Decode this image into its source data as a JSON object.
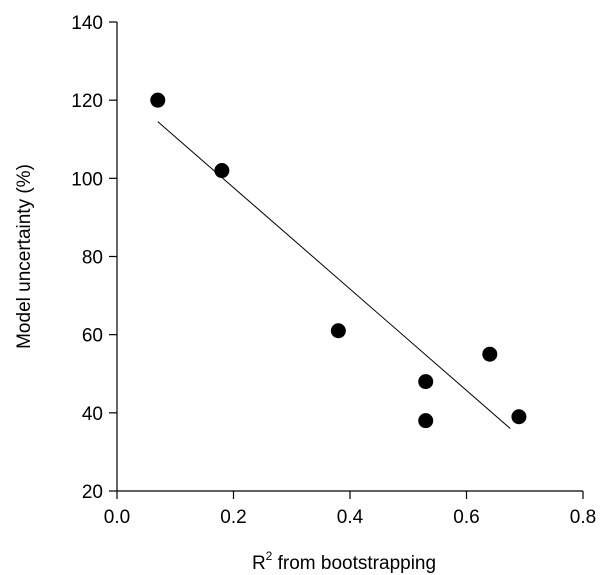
{
  "chart_data": {
    "type": "scatter",
    "title": "",
    "xlabel_base": "R",
    "xlabel_sup": "2",
    "xlabel_rest": " from bootstrapping",
    "ylabel": "Model uncertainty (%)",
    "xlim": [
      0.0,
      0.8
    ],
    "ylim": [
      20,
      140
    ],
    "x_ticks": [
      0.0,
      0.2,
      0.4,
      0.6,
      0.8
    ],
    "x_tick_labels": [
      "0.0",
      "0.2",
      "0.4",
      "0.6",
      "0.8"
    ],
    "y_ticks": [
      20,
      40,
      60,
      80,
      100,
      120,
      140
    ],
    "y_tick_labels": [
      "20",
      "40",
      "60",
      "80",
      "100",
      "120",
      "140"
    ],
    "grid": false,
    "series": [
      {
        "points": [
          {
            "x": 0.07,
            "y": 120
          },
          {
            "x": 0.18,
            "y": 102
          },
          {
            "x": 0.38,
            "y": 61
          },
          {
            "x": 0.53,
            "y": 48
          },
          {
            "x": 0.53,
            "y": 38
          },
          {
            "x": 0.64,
            "y": 55
          },
          {
            "x": 0.69,
            "y": 39
          }
        ],
        "color": "#000000"
      }
    ],
    "trend_line": {
      "x": [
        0.07,
        0.675
      ],
      "y": [
        114.5,
        36
      ]
    }
  }
}
